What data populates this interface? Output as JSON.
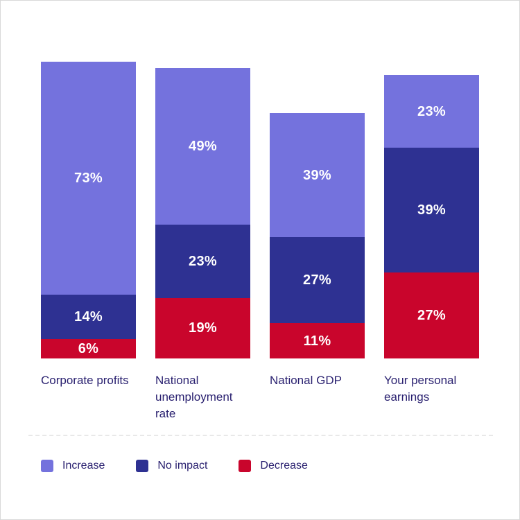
{
  "chart_data": {
    "type": "bar",
    "variant": "stacked-vertical",
    "unit": "%",
    "title": "",
    "xlabel": "",
    "ylabel": "",
    "grid": false,
    "axes_shown": false,
    "legend_position": "bottom",
    "value_label_format": "{value}%",
    "stack_order_top_to_bottom": [
      "Increase",
      "No impact",
      "Decrease"
    ],
    "categories": [
      "Corporate profits",
      "National unemployment rate",
      "National GDP",
      "Your personal earnings"
    ],
    "series": [
      {
        "name": "Increase",
        "color": "#7472DD",
        "values": [
          73,
          49,
          39,
          23
        ]
      },
      {
        "name": "No impact",
        "color": "#2E3192",
        "values": [
          14,
          23,
          27,
          39
        ]
      },
      {
        "name": "Decrease",
        "color": "#C9052C",
        "values": [
          6,
          19,
          11,
          27
        ]
      }
    ]
  },
  "legend": {
    "items": [
      {
        "label": "Increase",
        "color": "#7472DD"
      },
      {
        "label": "No impact",
        "color": "#2E3192"
      },
      {
        "label": "Decrease",
        "color": "#C9052C"
      }
    ]
  },
  "colors": {
    "background": "#FFFFFF",
    "canvas_border": "#D8D8D8",
    "category_text": "#2A2170",
    "value_text": "#FFFFFF",
    "divider": "#E8E8E8"
  }
}
